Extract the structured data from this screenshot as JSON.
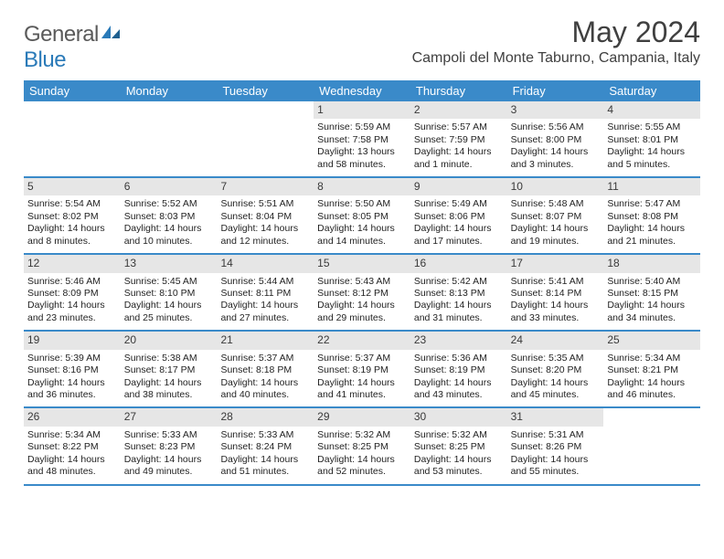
{
  "logo": {
    "text1": "General",
    "text2": "Blue"
  },
  "title": "May 2024",
  "location": "Campoli del Monte Taburno, Campania, Italy",
  "colors": {
    "header_bg": "#3a8ac9",
    "header_text": "#ffffff",
    "daynum_bg": "#e6e6e6",
    "border": "#3a8ac9",
    "body_text": "#232323",
    "title_text": "#404040",
    "logo_gray": "#5a5a5a",
    "logo_blue": "#2a7ab8"
  },
  "weekdays": [
    "Sunday",
    "Monday",
    "Tuesday",
    "Wednesday",
    "Thursday",
    "Friday",
    "Saturday"
  ],
  "weeks": [
    [
      null,
      null,
      null,
      {
        "n": "1",
        "sr": "Sunrise: 5:59 AM",
        "ss": "Sunset: 7:58 PM",
        "dl1": "Daylight: 13 hours",
        "dl2": "and 58 minutes."
      },
      {
        "n": "2",
        "sr": "Sunrise: 5:57 AM",
        "ss": "Sunset: 7:59 PM",
        "dl1": "Daylight: 14 hours",
        "dl2": "and 1 minute."
      },
      {
        "n": "3",
        "sr": "Sunrise: 5:56 AM",
        "ss": "Sunset: 8:00 PM",
        "dl1": "Daylight: 14 hours",
        "dl2": "and 3 minutes."
      },
      {
        "n": "4",
        "sr": "Sunrise: 5:55 AM",
        "ss": "Sunset: 8:01 PM",
        "dl1": "Daylight: 14 hours",
        "dl2": "and 5 minutes."
      }
    ],
    [
      {
        "n": "5",
        "sr": "Sunrise: 5:54 AM",
        "ss": "Sunset: 8:02 PM",
        "dl1": "Daylight: 14 hours",
        "dl2": "and 8 minutes."
      },
      {
        "n": "6",
        "sr": "Sunrise: 5:52 AM",
        "ss": "Sunset: 8:03 PM",
        "dl1": "Daylight: 14 hours",
        "dl2": "and 10 minutes."
      },
      {
        "n": "7",
        "sr": "Sunrise: 5:51 AM",
        "ss": "Sunset: 8:04 PM",
        "dl1": "Daylight: 14 hours",
        "dl2": "and 12 minutes."
      },
      {
        "n": "8",
        "sr": "Sunrise: 5:50 AM",
        "ss": "Sunset: 8:05 PM",
        "dl1": "Daylight: 14 hours",
        "dl2": "and 14 minutes."
      },
      {
        "n": "9",
        "sr": "Sunrise: 5:49 AM",
        "ss": "Sunset: 8:06 PM",
        "dl1": "Daylight: 14 hours",
        "dl2": "and 17 minutes."
      },
      {
        "n": "10",
        "sr": "Sunrise: 5:48 AM",
        "ss": "Sunset: 8:07 PM",
        "dl1": "Daylight: 14 hours",
        "dl2": "and 19 minutes."
      },
      {
        "n": "11",
        "sr": "Sunrise: 5:47 AM",
        "ss": "Sunset: 8:08 PM",
        "dl1": "Daylight: 14 hours",
        "dl2": "and 21 minutes."
      }
    ],
    [
      {
        "n": "12",
        "sr": "Sunrise: 5:46 AM",
        "ss": "Sunset: 8:09 PM",
        "dl1": "Daylight: 14 hours",
        "dl2": "and 23 minutes."
      },
      {
        "n": "13",
        "sr": "Sunrise: 5:45 AM",
        "ss": "Sunset: 8:10 PM",
        "dl1": "Daylight: 14 hours",
        "dl2": "and 25 minutes."
      },
      {
        "n": "14",
        "sr": "Sunrise: 5:44 AM",
        "ss": "Sunset: 8:11 PM",
        "dl1": "Daylight: 14 hours",
        "dl2": "and 27 minutes."
      },
      {
        "n": "15",
        "sr": "Sunrise: 5:43 AM",
        "ss": "Sunset: 8:12 PM",
        "dl1": "Daylight: 14 hours",
        "dl2": "and 29 minutes."
      },
      {
        "n": "16",
        "sr": "Sunrise: 5:42 AM",
        "ss": "Sunset: 8:13 PM",
        "dl1": "Daylight: 14 hours",
        "dl2": "and 31 minutes."
      },
      {
        "n": "17",
        "sr": "Sunrise: 5:41 AM",
        "ss": "Sunset: 8:14 PM",
        "dl1": "Daylight: 14 hours",
        "dl2": "and 33 minutes."
      },
      {
        "n": "18",
        "sr": "Sunrise: 5:40 AM",
        "ss": "Sunset: 8:15 PM",
        "dl1": "Daylight: 14 hours",
        "dl2": "and 34 minutes."
      }
    ],
    [
      {
        "n": "19",
        "sr": "Sunrise: 5:39 AM",
        "ss": "Sunset: 8:16 PM",
        "dl1": "Daylight: 14 hours",
        "dl2": "and 36 minutes."
      },
      {
        "n": "20",
        "sr": "Sunrise: 5:38 AM",
        "ss": "Sunset: 8:17 PM",
        "dl1": "Daylight: 14 hours",
        "dl2": "and 38 minutes."
      },
      {
        "n": "21",
        "sr": "Sunrise: 5:37 AM",
        "ss": "Sunset: 8:18 PM",
        "dl1": "Daylight: 14 hours",
        "dl2": "and 40 minutes."
      },
      {
        "n": "22",
        "sr": "Sunrise: 5:37 AM",
        "ss": "Sunset: 8:19 PM",
        "dl1": "Daylight: 14 hours",
        "dl2": "and 41 minutes."
      },
      {
        "n": "23",
        "sr": "Sunrise: 5:36 AM",
        "ss": "Sunset: 8:19 PM",
        "dl1": "Daylight: 14 hours",
        "dl2": "and 43 minutes."
      },
      {
        "n": "24",
        "sr": "Sunrise: 5:35 AM",
        "ss": "Sunset: 8:20 PM",
        "dl1": "Daylight: 14 hours",
        "dl2": "and 45 minutes."
      },
      {
        "n": "25",
        "sr": "Sunrise: 5:34 AM",
        "ss": "Sunset: 8:21 PM",
        "dl1": "Daylight: 14 hours",
        "dl2": "and 46 minutes."
      }
    ],
    [
      {
        "n": "26",
        "sr": "Sunrise: 5:34 AM",
        "ss": "Sunset: 8:22 PM",
        "dl1": "Daylight: 14 hours",
        "dl2": "and 48 minutes."
      },
      {
        "n": "27",
        "sr": "Sunrise: 5:33 AM",
        "ss": "Sunset: 8:23 PM",
        "dl1": "Daylight: 14 hours",
        "dl2": "and 49 minutes."
      },
      {
        "n": "28",
        "sr": "Sunrise: 5:33 AM",
        "ss": "Sunset: 8:24 PM",
        "dl1": "Daylight: 14 hours",
        "dl2": "and 51 minutes."
      },
      {
        "n": "29",
        "sr": "Sunrise: 5:32 AM",
        "ss": "Sunset: 8:25 PM",
        "dl1": "Daylight: 14 hours",
        "dl2": "and 52 minutes."
      },
      {
        "n": "30",
        "sr": "Sunrise: 5:32 AM",
        "ss": "Sunset: 8:25 PM",
        "dl1": "Daylight: 14 hours",
        "dl2": "and 53 minutes."
      },
      {
        "n": "31",
        "sr": "Sunrise: 5:31 AM",
        "ss": "Sunset: 8:26 PM",
        "dl1": "Daylight: 14 hours",
        "dl2": "and 55 minutes."
      },
      null
    ]
  ]
}
